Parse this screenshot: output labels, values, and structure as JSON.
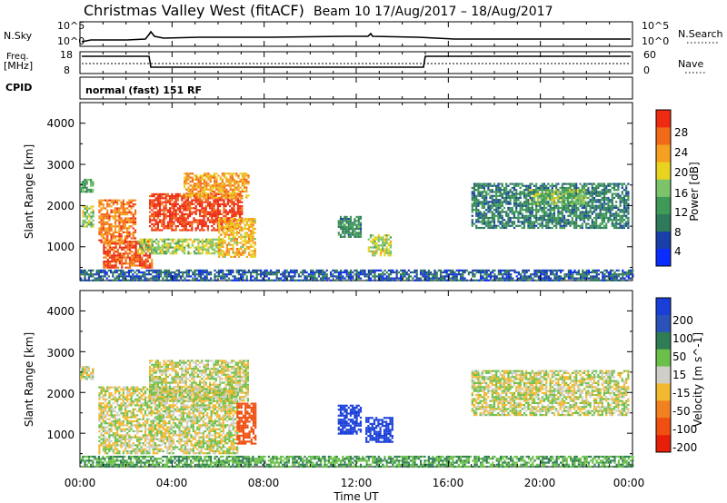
{
  "header": {
    "title": "Christmas Valley West (fitACF)",
    "subtitle": "Beam 10 17/Aug/2017 – 18/Aug/2017"
  },
  "aux_panels": {
    "nsky_label": "N.Sky",
    "nsky_ticks": [
      "10^5",
      "10^0"
    ],
    "nsearch_label": "N.Search",
    "freq_label": [
      "Freq.",
      "[MHz]"
    ],
    "freq_ticks": [
      "18",
      "8"
    ],
    "nave_label": "Nave",
    "nave_ticks": [
      "60",
      "0"
    ],
    "cpid_label": "CPID",
    "cpid_value": "normal (fast) 151 RF"
  },
  "chart_data": [
    {
      "type": "heatmap",
      "parameter": "Power",
      "ylabel": "Slant Range [km]",
      "yticks": [
        "1000",
        "2000",
        "3000",
        "4000"
      ],
      "ylim": [
        180,
        4500
      ],
      "xlim_hours": [
        0,
        24
      ],
      "colorbar_label": "Power [dB]",
      "colorbar_ticks": [
        "4",
        "8",
        "12",
        "16",
        "20",
        "24",
        "28"
      ],
      "colors": [
        "#0a2cff",
        "#1a3fa8",
        "#2e7a5a",
        "#3f9a57",
        "#7cc36a",
        "#e8d320",
        "#f5a020",
        "#f26a18",
        "#ee2a10"
      ],
      "echo_regions": [
        {
          "t0": 0.0,
          "t1": 0.55,
          "r0": 2350,
          "r1": 2650,
          "value": 14
        },
        {
          "t0": 0.1,
          "t1": 0.6,
          "r0": 1500,
          "r1": 2000,
          "value": 18
        },
        {
          "t0": 0.8,
          "t1": 2.4,
          "r0": 1100,
          "r1": 2150,
          "value": 26
        },
        {
          "t0": 1.0,
          "t1": 3.1,
          "r0": 500,
          "r1": 1150,
          "value": 28
        },
        {
          "t0": 2.5,
          "t1": 6.2,
          "r0": 850,
          "r1": 1200,
          "value": 18
        },
        {
          "t0": 3.0,
          "t1": 7.0,
          "r0": 1400,
          "r1": 2300,
          "value": 30
        },
        {
          "t0": 4.5,
          "t1": 7.3,
          "r0": 2200,
          "r1": 2800,
          "value": 24
        },
        {
          "t0": 6.0,
          "t1": 7.6,
          "r0": 750,
          "r1": 1700,
          "value": 22
        },
        {
          "t0": 11.2,
          "t1": 12.2,
          "r0": 1250,
          "r1": 1750,
          "value": 12
        },
        {
          "t0": 12.5,
          "t1": 13.5,
          "r0": 800,
          "r1": 1300,
          "value": 18
        },
        {
          "t0": 17.0,
          "t1": 23.8,
          "r0": 1450,
          "r1": 2550,
          "value": 11
        },
        {
          "t0": 19.5,
          "t1": 22.0,
          "r0": 2050,
          "r1": 2400,
          "value": 16
        },
        {
          "t0": 0.0,
          "t1": 24.0,
          "r0": 200,
          "r1": 450,
          "value": 8
        }
      ]
    },
    {
      "type": "heatmap",
      "parameter": "Velocity",
      "ylabel": "Slant Range [km]",
      "yticks": [
        "1000",
        "2000",
        "3000",
        "4000"
      ],
      "ylim": [
        180,
        4500
      ],
      "xlim_hours": [
        0,
        24
      ],
      "colorbar_label": "Velocity [m s^-1]",
      "colorbar_ticks": [
        "200",
        "100",
        "50",
        "15",
        "-15",
        "-50",
        "-100",
        "-200"
      ],
      "colors": [
        "#1a3fd8",
        "#2a52b8",
        "#2f7d54",
        "#6cc04a",
        "#cfcfc8",
        "#f2b830",
        "#f08020",
        "#ef4f10",
        "#e81f08"
      ],
      "echo_regions": [
        {
          "t0": 0.0,
          "t1": 0.55,
          "r0": 2350,
          "r1": 2650,
          "value": 0
        },
        {
          "t0": 0.8,
          "t1": 6.8,
          "r0": 500,
          "r1": 2150,
          "value": 0
        },
        {
          "t0": 3.0,
          "t1": 7.3,
          "r0": 1800,
          "r1": 2800,
          "value": 0
        },
        {
          "t0": 6.8,
          "t1": 7.6,
          "r0": 750,
          "r1": 1750,
          "value": -120
        },
        {
          "t0": 11.2,
          "t1": 12.2,
          "r0": 1000,
          "r1": 1700,
          "value": 180
        },
        {
          "t0": 12.4,
          "t1": 13.6,
          "r0": 800,
          "r1": 1400,
          "value": 170
        },
        {
          "t0": 17.0,
          "t1": 23.8,
          "r0": 1450,
          "r1": 2550,
          "value": 0
        },
        {
          "t0": 0.0,
          "t1": 24.0,
          "r0": 200,
          "r1": 450,
          "value": 30
        }
      ]
    }
  ],
  "x_axis": {
    "ticks": [
      "00:00",
      "04:00",
      "08:00",
      "12:00",
      "16:00",
      "20:00",
      "00:00"
    ],
    "label": "Time UT"
  }
}
